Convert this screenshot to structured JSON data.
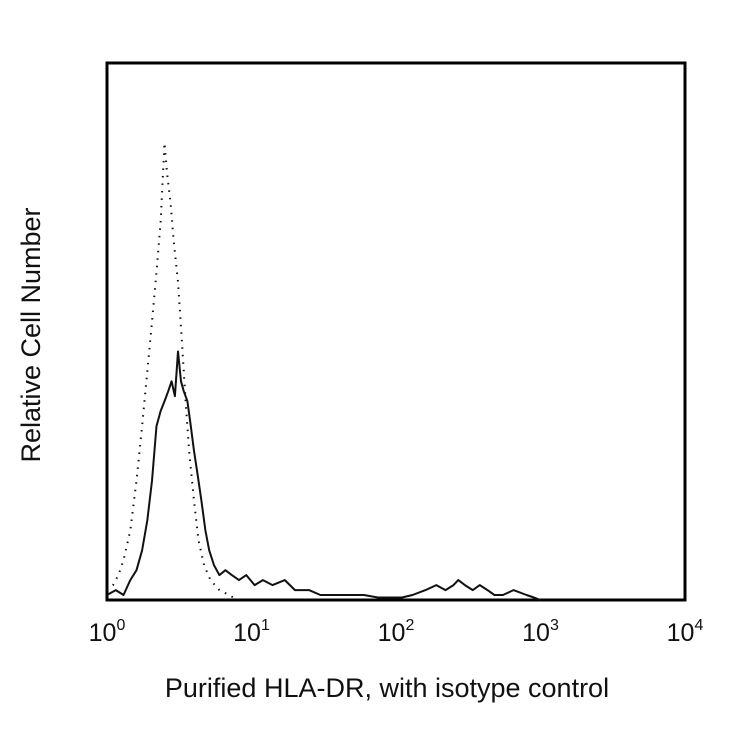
{
  "chart_data": {
    "type": "line",
    "title": "",
    "xlabel": "Purified HLA-DR, with isotype control",
    "ylabel": "Relative Cell Number",
    "x_scale": "log",
    "xlim": [
      1,
      10000
    ],
    "ylim": [
      0,
      100
    ],
    "grid": false,
    "x_ticks": [
      {
        "value": 1,
        "base": "10",
        "exp": "0"
      },
      {
        "value": 10,
        "base": "10",
        "exp": "1"
      },
      {
        "value": 100,
        "base": "10",
        "exp": "2"
      },
      {
        "value": 1000,
        "base": "10",
        "exp": "3"
      },
      {
        "value": 10000,
        "base": "10",
        "exp": "4"
      }
    ],
    "series": [
      {
        "style": "solid",
        "color": "#111111",
        "x": [
          1.0,
          1.15,
          1.3,
          1.45,
          1.6,
          1.75,
          1.9,
          2.05,
          2.2,
          2.35,
          2.5,
          2.65,
          2.8,
          2.95,
          3.1,
          3.25,
          3.4,
          3.6,
          3.8,
          4.0,
          4.25,
          4.5,
          4.8,
          5.1,
          5.5,
          6.0,
          6.6,
          7.3,
          8.2,
          9.2,
          10.5,
          12,
          14,
          17,
          20,
          25,
          30,
          40,
          50,
          60,
          75,
          90,
          110,
          130,
          160,
          190,
          220,
          250,
          270,
          300,
          340,
          380,
          430,
          480,
          550,
          650,
          800,
          900,
          1000
        ],
        "y": [
          1,
          2,
          1,
          4,
          6,
          10,
          16,
          24,
          35,
          38,
          40,
          42,
          44,
          41,
          50,
          44,
          42,
          40,
          35,
          30,
          25,
          20,
          14,
          10,
          7,
          5,
          6,
          5,
          4,
          5,
          3,
          4,
          3,
          4,
          2,
          2,
          1,
          1,
          1,
          1,
          0.5,
          0.5,
          0.5,
          1,
          2,
          3,
          2,
          3,
          4,
          3,
          2,
          3,
          2,
          1,
          1,
          2,
          1,
          0.5,
          0
        ]
      },
      {
        "style": "dotted",
        "color": "#111111",
        "x": [
          1.0,
          1.1,
          1.2,
          1.3,
          1.45,
          1.6,
          1.75,
          1.9,
          2.05,
          2.2,
          2.35,
          2.5,
          2.6,
          2.75,
          2.9,
          3.1,
          3.3,
          3.5,
          3.7,
          4.0,
          4.3,
          4.7,
          5.2,
          6.0,
          7.0,
          8.0
        ],
        "y": [
          2,
          3,
          5,
          8,
          14,
          24,
          35,
          46,
          56,
          66,
          76,
          92,
          86,
          80,
          72,
          64,
          52,
          40,
          30,
          20,
          12,
          7,
          4,
          2,
          1,
          0
        ]
      }
    ]
  }
}
